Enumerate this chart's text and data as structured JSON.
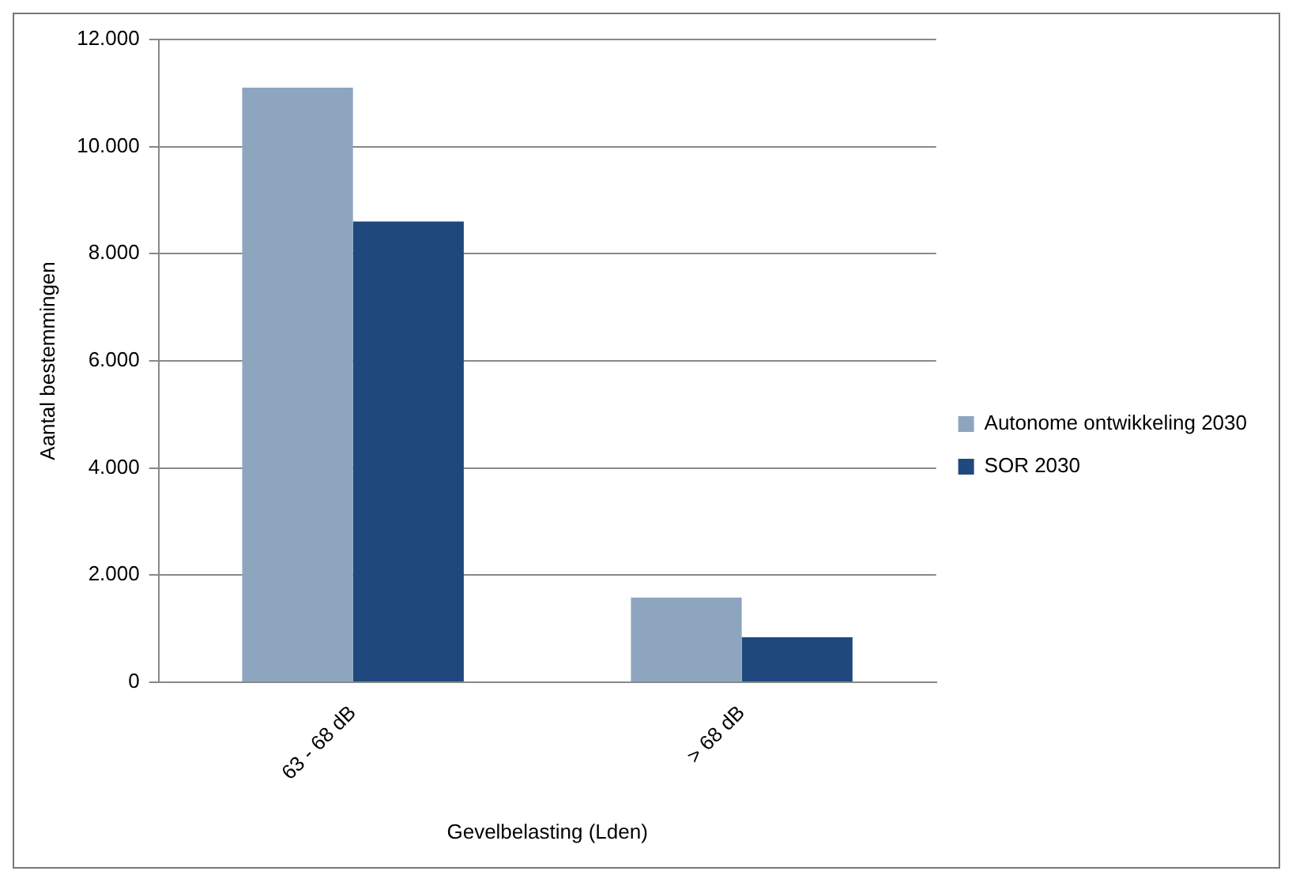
{
  "chart_data": {
    "type": "bar",
    "xlabel": "Gevelbelasting (Lden)",
    "ylabel": "Aantal bestemmingen",
    "categories": [
      "63 - 68 dB",
      "> 68 dB"
    ],
    "series": [
      {
        "name": "Autonome ontwikkeling 2030",
        "color": "#8ea5c0",
        "values": [
          11100,
          1580
        ]
      },
      {
        "name": "SOR 2030",
        "color": "#1f497d",
        "values": [
          8600,
          840
        ]
      }
    ],
    "ylim": [
      0,
      12000
    ],
    "yticks": [
      0,
      {
        "value": 2000,
        "label": "2.000"
      },
      {
        "value": 4000,
        "label": "4.000"
      },
      {
        "value": 6000,
        "label": "6.000"
      },
      {
        "value": 8000,
        "label": "8.000"
      },
      {
        "value": 10000,
        "label": "10.000"
      },
      {
        "value": 12000,
        "label": "12.000"
      }
    ],
    "grid": "y",
    "legend": "right"
  }
}
